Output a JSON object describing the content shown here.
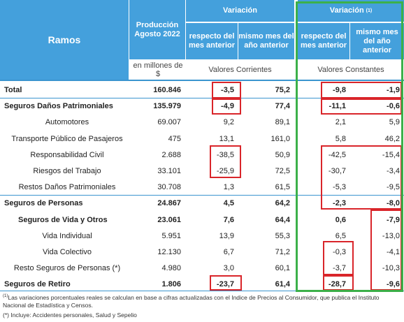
{
  "header": {
    "ramos": "Ramos",
    "produccion": "Producción Agosto 2022",
    "variacion": "Variación",
    "variacion_real": "Variación",
    "variacion_real_note": "(1)",
    "respecto": "respecto del mes anterior",
    "mismo_mes": "mismo mes del año anterior",
    "respecto_real": "respecto del mes anterior",
    "mismo_mes_real": "mismo mes del año anterior",
    "unidades": "en millones de $",
    "corrientes": "Valores Corrientes",
    "constantes": "Valores Constantes"
  },
  "rows": [
    [
      "Total",
      "160.846",
      "-3,5",
      "75,2",
      "-9,8",
      "-1,9"
    ],
    [
      "Seguros Daños Patrimoniales",
      "135.979",
      "-4,9",
      "77,4",
      "-11,1",
      "-0,6"
    ],
    [
      "Automotores",
      "69.007",
      "9,2",
      "89,1",
      "2,1",
      "5,9"
    ],
    [
      "Transporte Público de Pasajeros",
      "475",
      "13,1",
      "161,0",
      "5,8",
      "46,2"
    ],
    [
      "Responsabilidad Civil",
      "2.688",
      "-38,5",
      "50,9",
      "-42,5",
      "-15,4"
    ],
    [
      "Riesgos del Trabajo",
      "33.101",
      "-25,9",
      "72,5",
      "-30,7",
      "-3,4"
    ],
    [
      "Restos Daños Patrimoniales",
      "30.708",
      "1,3",
      "61,5",
      "-5,3",
      "-9,5"
    ],
    [
      "Seguros de Personas",
      "24.867",
      "4,5",
      "64,2",
      "-2,3",
      "-8,0"
    ],
    [
      "Seguros de Vida y Otros",
      "23.061",
      "7,6",
      "64,4",
      "0,6",
      "-7,9"
    ],
    [
      "Vida Individual",
      "5.951",
      "13,9",
      "55,3",
      "6,5",
      "-13,0"
    ],
    [
      "Vida Colectivo",
      "12.130",
      "6,7",
      "71,2",
      "-0,3",
      "-4,1"
    ],
    [
      "Resto Seguros de Personas (*)",
      "4.980",
      "3,0",
      "60,1",
      "-3,7",
      "-10,3"
    ],
    [
      "Seguros de Retiro",
      "1.806",
      "-23,7",
      "61,4",
      "-28,7",
      "-9,6"
    ]
  ],
  "footnotes": [
    {
      "marker": "(1)",
      "text": "Las variaciones porcentuales reales se calculan en base a cifras actualizadas con  el Indice de Precios al Consumidor, que publica el Instituto Nacional de Estadística y  Censos."
    },
    {
      "text": "(*) Incluye: Accidentes personales, Salud y Sepelio"
    }
  ]
}
